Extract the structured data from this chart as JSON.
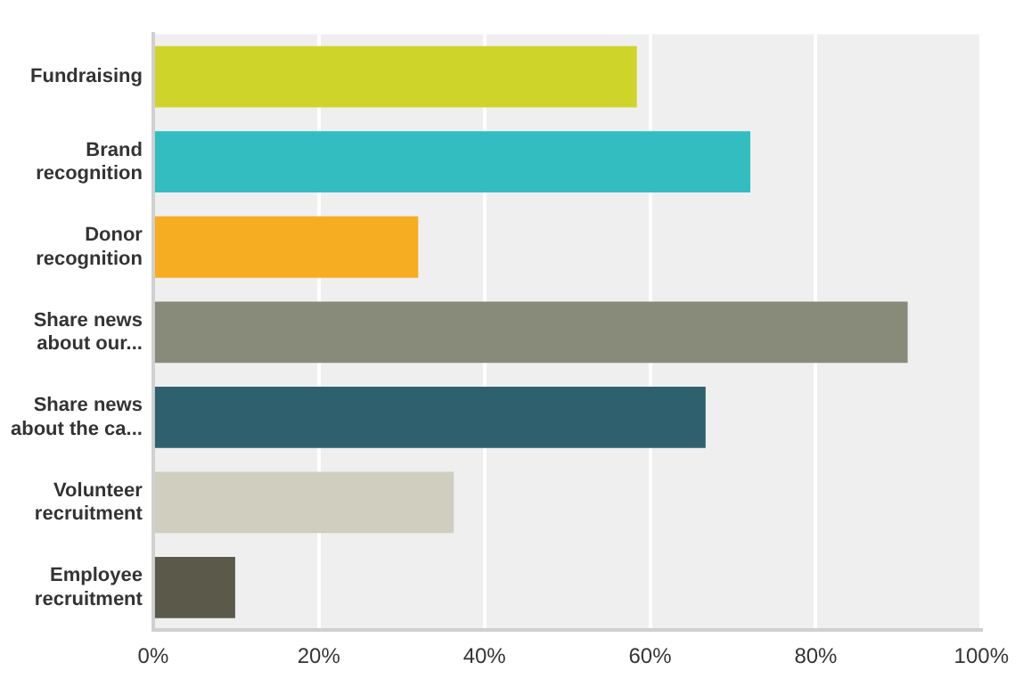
{
  "chart_data": {
    "type": "bar",
    "orientation": "horizontal",
    "categories": [
      "Fundraising",
      "Brand recognition",
      "Donor recognition",
      "Share news about our...",
      "Share news about the ca...",
      "Volunteer recruitment",
      "Employee recruitment"
    ],
    "values": [
      58.4,
      72.1,
      32.0,
      91.1,
      66.7,
      36.3,
      9.9
    ],
    "colors": [
      "#cfd42a",
      "#33bdc0",
      "#f6ad21",
      "#898b7a",
      "#2f606d",
      "#cfcebf",
      "#5b5a4a"
    ],
    "xlim": [
      0,
      100
    ],
    "xticks": [
      {
        "value": 0,
        "label": "0%"
      },
      {
        "value": 20,
        "label": "20%"
      },
      {
        "value": 40,
        "label": "40%"
      },
      {
        "value": 60,
        "label": "60%"
      },
      {
        "value": 80,
        "label": "80%"
      },
      {
        "value": 100,
        "label": "100%"
      }
    ],
    "grid": "x",
    "legend": false
  }
}
